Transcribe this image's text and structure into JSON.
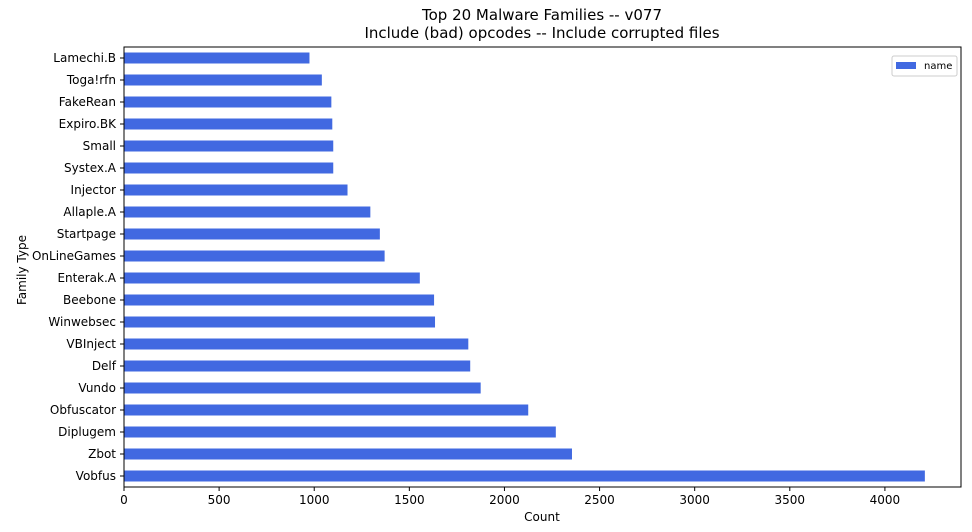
{
  "chart_data": {
    "type": "bar",
    "orientation": "horizontal",
    "title": "Top 20 Malware Families -- v077",
    "subtitle": "Include (bad) opcodes -- Include corrupted files",
    "xlabel": "Count",
    "ylabel": "Family Type",
    "xlim": [
      0,
      4400
    ],
    "xticks": [
      0,
      500,
      1000,
      1500,
      2000,
      2500,
      3000,
      3500,
      4000
    ],
    "grid": false,
    "legend": {
      "placement": "top-right",
      "entries": [
        "name"
      ]
    },
    "bar_color": "#4169e1",
    "categories": [
      "Vobfus",
      "Zbot",
      "Diplugem",
      "Obfuscator",
      "Vundo",
      "Delf",
      "VBInject",
      "Winwebsec",
      "Beebone",
      "Enterak.A",
      "OnLineGames",
      "Startpage",
      "Allaple.A",
      "Injector",
      "Systex.A",
      "Small",
      "Expiro.BK",
      "FakeRean",
      "Toga!rfn",
      "Lamechi.B"
    ],
    "series": [
      {
        "name": "name",
        "values": [
          4210,
          2355,
          2270,
          2125,
          1875,
          1820,
          1810,
          1635,
          1630,
          1555,
          1370,
          1345,
          1295,
          1175,
          1100,
          1100,
          1095,
          1090,
          1040,
          975
        ]
      }
    ]
  }
}
